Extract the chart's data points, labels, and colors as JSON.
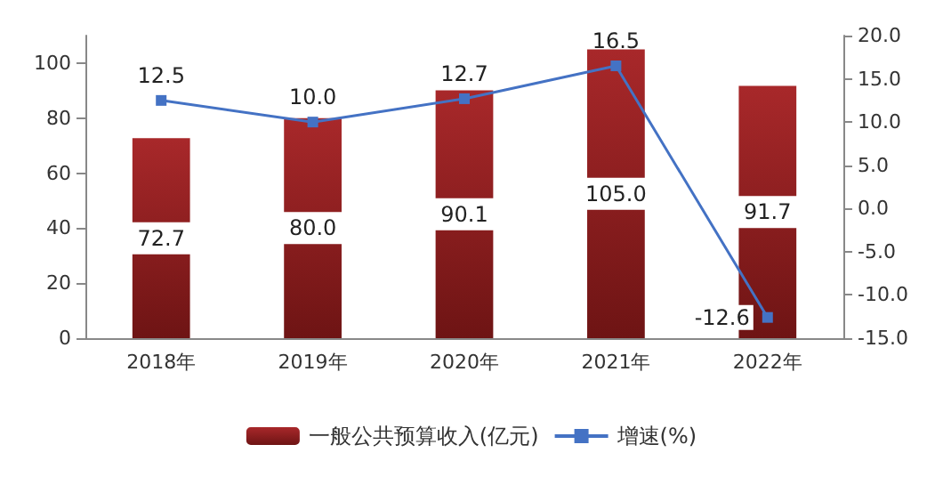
{
  "chart_data": {
    "type": "bar",
    "categories": [
      "2018年",
      "2019年",
      "2020年",
      "2021年",
      "2022年"
    ],
    "series": [
      {
        "name": "一般公共预算收入(亿元)",
        "color": "#a8282a",
        "values": [
          72.7,
          80.0,
          90.1,
          105.0,
          91.7
        ],
        "value_labels": [
          "72.7",
          "80.0",
          "90.1",
          "105.0",
          "91.7"
        ]
      },
      {
        "name": "增速(%)",
        "type": "line",
        "axis": "y2",
        "color": "#4472c4",
        "marker": "square",
        "values": [
          12.5,
          10.0,
          12.7,
          16.5,
          -12.6
        ],
        "value_labels": [
          "12.5",
          "10.0",
          "12.7",
          "16.5",
          "-12.6"
        ]
      }
    ],
    "ylim": [
      0,
      110
    ],
    "yticks": [
      0,
      20,
      40,
      60,
      80,
      100
    ],
    "y2lim": [
      -15,
      20
    ],
    "y2ticks": [
      {
        "value": -15,
        "label": "-15.0"
      },
      {
        "value": -10,
        "label": "-10.0"
      },
      {
        "value": -5,
        "label": "-5.0"
      },
      {
        "value": 0,
        "label": "0.0"
      },
      {
        "value": 5,
        "label": "5.0"
      },
      {
        "value": 10,
        "label": "10.0"
      },
      {
        "value": 15,
        "label": "15.0"
      },
      {
        "value": 20,
        "label": "20.0"
      }
    ],
    "grid": false,
    "legend": "bottom"
  }
}
